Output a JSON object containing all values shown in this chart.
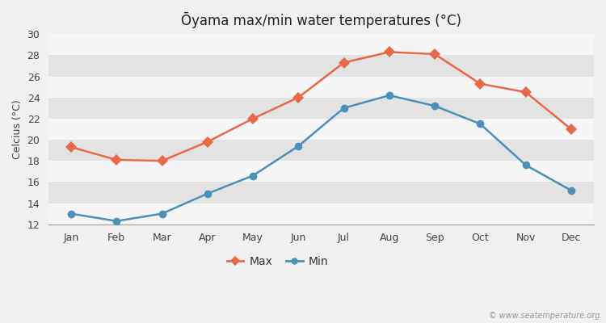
{
  "title": "Ōyama max/min water temperatures (°C)",
  "ylabel": "Celcius (°C)",
  "months": [
    "Jan",
    "Feb",
    "Mar",
    "Apr",
    "May",
    "Jun",
    "Jul",
    "Aug",
    "Sep",
    "Oct",
    "Nov",
    "Dec"
  ],
  "max_temps": [
    19.3,
    18.1,
    18.0,
    19.8,
    22.0,
    24.0,
    27.3,
    28.3,
    28.1,
    25.3,
    24.5,
    21.0
  ],
  "min_temps": [
    13.0,
    12.3,
    13.0,
    14.9,
    16.6,
    19.4,
    23.0,
    24.2,
    23.2,
    21.5,
    17.6,
    15.2
  ],
  "max_color": "#e8694a",
  "min_color": "#4a90b8",
  "background_color": "#f0f0f0",
  "plot_bg_color": "#ebebeb",
  "band_color_light": "#f5f5f5",
  "band_color_dark": "#e3e3e3",
  "ylim": [
    12,
    30
  ],
  "yticks": [
    12,
    14,
    16,
    18,
    20,
    22,
    24,
    26,
    28,
    30
  ],
  "watermark": "© www.seatemperature.org",
  "legend_labels": [
    "Max",
    "Min"
  ],
  "marker_size": 7,
  "line_width": 1.8
}
